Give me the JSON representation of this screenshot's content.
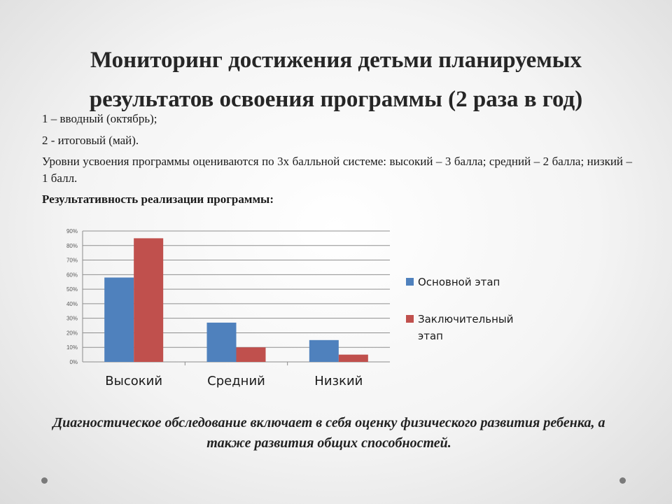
{
  "slide": {
    "title": "Мониторинг достижения детьми планируемых результатов освоения программы (2 раза в год)",
    "line1": "1 – вводный (октябрь);",
    "line2": "2 - итоговый (май).",
    "line3": "Уровни усвоения программы оцениваются по 3х балльной системе:  высокий – 3 балла; средний – 2 балла; низкий – 1 балл.",
    "line4": "Результативность реализации программы:",
    "caption": "Диагностическое обследование включает в себя оценку физического развития ребенка, а также развития общих способностей."
  },
  "chart_data": {
    "type": "bar",
    "categories": [
      "Высокий",
      "Средний",
      "Низкий"
    ],
    "series": [
      {
        "name": "Основной этап",
        "values": [
          58,
          27,
          15
        ],
        "color": "#4f81bd"
      },
      {
        "name": "Заключительный этап",
        "values": [
          85,
          10,
          5
        ],
        "color": "#c0504d"
      }
    ],
    "y_ticks": [
      "0%",
      "10%",
      "20%",
      "30%",
      "40%",
      "50%",
      "60%",
      "70%",
      "80%",
      "90%"
    ],
    "ylim": [
      0,
      90
    ],
    "grid": true,
    "legend_position": "right"
  }
}
